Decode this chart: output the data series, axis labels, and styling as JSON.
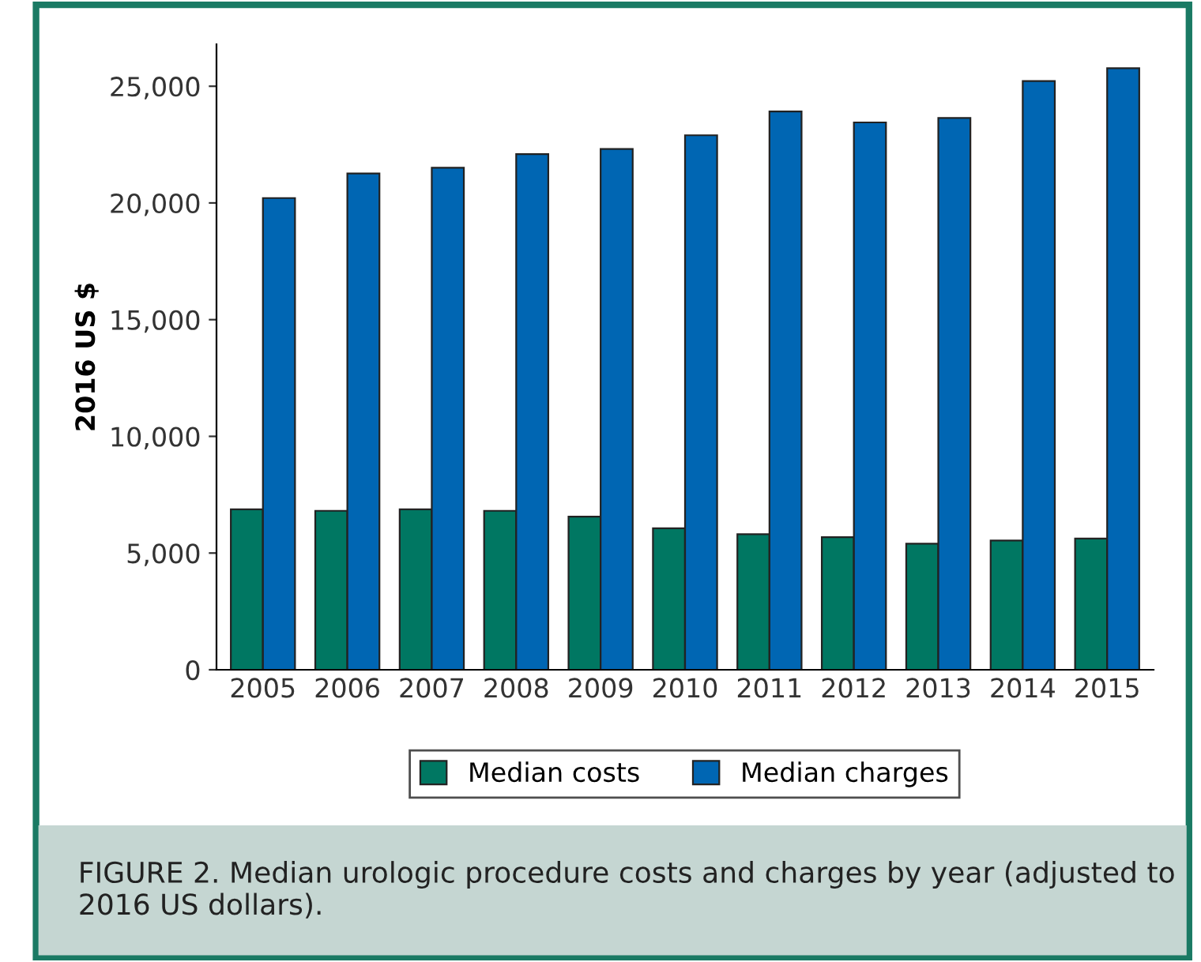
{
  "chart_data": {
    "type": "bar",
    "title": "FIGURE 2. Median urologic procedure costs and charges by year (adjusted to 2016 US dollars).",
    "ylabel": "2016 US $",
    "categories": [
      "2005",
      "2006",
      "2007",
      "2008",
      "2009",
      "2010",
      "2011",
      "2012",
      "2013",
      "2014",
      "2015"
    ],
    "series": [
      {
        "name": "Median costs",
        "color": "#007762",
        "values": [
          6870,
          6810,
          6870,
          6810,
          6560,
          6060,
          5810,
          5680,
          5400,
          5540,
          5620
        ]
      },
      {
        "name": "Median charges",
        "color": "#0066b3",
        "values": [
          20210,
          21260,
          21510,
          22090,
          22310,
          22900,
          23920,
          23450,
          23640,
          25220,
          25770
        ]
      }
    ],
    "ylim": [
      0,
      26800
    ],
    "yticks": [
      {
        "value": 0,
        "label": "0"
      },
      {
        "value": 5000,
        "label": "5,000"
      },
      {
        "value": 10000,
        "label": "10,000"
      },
      {
        "value": 15000,
        "label": "15,000"
      },
      {
        "value": 20000,
        "label": "20,000"
      },
      {
        "value": 25000,
        "label": "25,000"
      }
    ],
    "grid": false,
    "legend": "bottom"
  }
}
